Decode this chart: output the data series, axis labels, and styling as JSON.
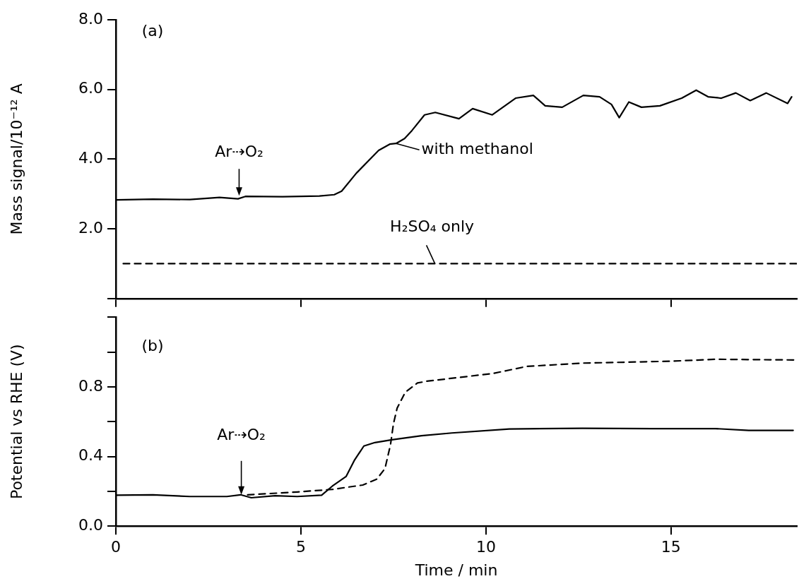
{
  "chart_data": [
    {
      "type": "line",
      "ylabel": "Mass signal/10⁻¹² A",
      "xlim": [
        0,
        18.4
      ],
      "xticks": [
        0,
        5,
        10,
        15
      ],
      "ylim": [
        0,
        8
      ],
      "yticks": [
        {
          "value": 0,
          "label": null
        },
        {
          "value": 2,
          "label": "2.0"
        },
        {
          "value": 4,
          "label": "4.0"
        },
        {
          "value": 6,
          "label": "6.0"
        },
        {
          "value": 8,
          "label": "8.0"
        }
      ],
      "tick_labels": "y",
      "marker": "none",
      "annotations": [
        "(a)",
        {
          "text": "Ar⇢O₂",
          "x": 3.33,
          "y": 2.95
        },
        {
          "text": "with methanol",
          "x": 7.57,
          "y": 4.45
        },
        {
          "text": "H₂SO₄ only",
          "x": 8.62,
          "y": 1.0
        }
      ],
      "series": [
        {
          "color": "#000000",
          "line_style": "solid",
          "x": [
            0,
            1,
            2,
            2.8,
            3.3,
            3.5,
            4.5,
            5.5,
            5.9,
            6.1,
            6.5,
            7.1,
            7.4,
            7.57,
            7.8,
            8.0,
            8.34,
            8.63,
            9.27,
            9.64,
            10.17,
            10.8,
            11.28,
            11.6,
            12.06,
            12.63,
            13.07,
            13.39,
            13.6,
            13.86,
            14.2,
            14.7,
            15.29,
            15.68,
            16.0,
            16.36,
            16.75,
            17.14,
            17.57,
            18.15,
            18.26
          ],
          "values": [
            2.83,
            2.85,
            2.84,
            2.9,
            2.86,
            2.93,
            2.92,
            2.94,
            2.98,
            3.08,
            3.6,
            4.25,
            4.43,
            4.45,
            4.59,
            4.82,
            5.27,
            5.34,
            5.16,
            5.45,
            5.27,
            5.75,
            5.83,
            5.53,
            5.49,
            5.83,
            5.79,
            5.57,
            5.19,
            5.64,
            5.49,
            5.53,
            5.75,
            5.98,
            5.79,
            5.75,
            5.9,
            5.68,
            5.9,
            5.6,
            5.79
          ]
        },
        {
          "color": "#000000",
          "line_style": "dashed",
          "x": [
            0.2,
            9,
            18.4
          ],
          "values": [
            1.0,
            1.0,
            1.0
          ]
        }
      ]
    },
    {
      "type": "line",
      "ylabel": "Potential vs RHE (V)",
      "xlabel": "Time / min",
      "xlim": [
        0,
        18.4
      ],
      "xticks": [
        0,
        5,
        10,
        15
      ],
      "ylim": [
        0,
        1.2
      ],
      "yticks": [
        {
          "value": 0,
          "label": "0.0"
        },
        {
          "value": 0.2,
          "label": null
        },
        {
          "value": 0.4,
          "label": "0.4"
        },
        {
          "value": 0.6,
          "label": null
        },
        {
          "value": 0.8,
          "label": "0.8"
        },
        {
          "value": 1.0,
          "label": null
        },
        {
          "value": 1.2,
          "label": null
        }
      ],
      "marker": "none",
      "annotations": [
        "(b)",
        {
          "text": "Ar⇢O₂",
          "x": 3.39,
          "y": 0.18
        }
      ],
      "series": [
        {
          "color": "#000000",
          "line_style": "solid",
          "x": [
            0,
            1,
            2,
            3,
            3.37,
            3.66,
            4.3,
            4.9,
            5.56,
            5.85,
            6.22,
            6.44,
            6.7,
            7.0,
            7.46,
            8.26,
            9.08,
            10.63,
            12.6,
            14.5,
            16.2,
            17.1,
            18.3
          ],
          "values": [
            0.178,
            0.18,
            0.17,
            0.17,
            0.18,
            0.163,
            0.175,
            0.17,
            0.178,
            0.23,
            0.285,
            0.376,
            0.46,
            0.48,
            0.496,
            0.519,
            0.535,
            0.558,
            0.562,
            0.56,
            0.56,
            0.55,
            0.55
          ]
        },
        {
          "color": "#000000",
          "line_style": "dashed",
          "x": [
            3.56,
            4.9,
            5.85,
            6.67,
            7.05,
            7.27,
            7.42,
            7.5,
            7.6,
            7.82,
            8.15,
            8.4,
            10.2,
            11.1,
            12.6,
            15.0,
            16.2,
            18.4
          ],
          "values": [
            0.18,
            0.196,
            0.211,
            0.236,
            0.27,
            0.33,
            0.467,
            0.587,
            0.678,
            0.769,
            0.822,
            0.832,
            0.877,
            0.917,
            0.936,
            0.947,
            0.958,
            0.954
          ]
        }
      ]
    }
  ]
}
